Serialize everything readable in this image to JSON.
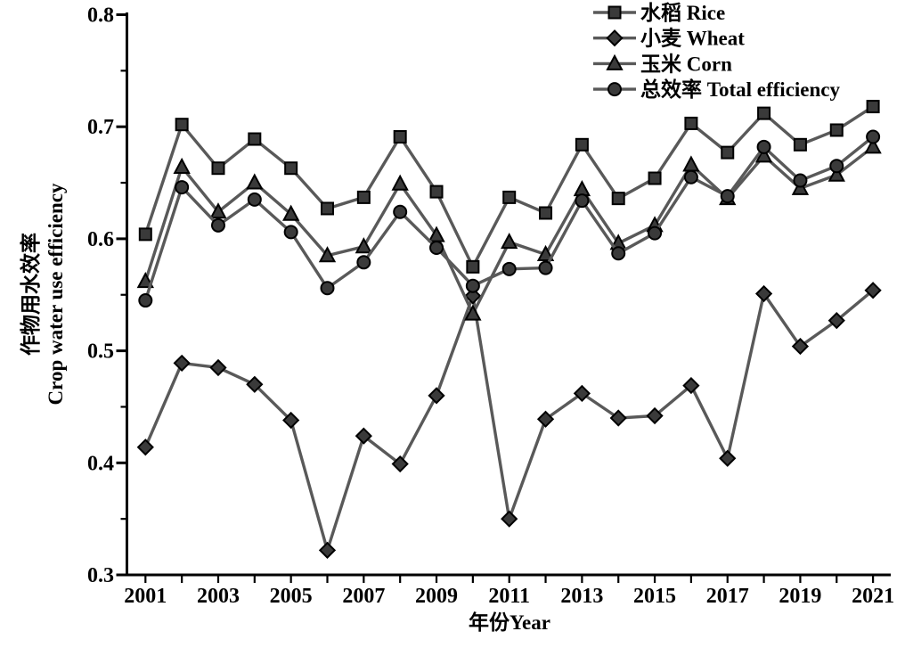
{
  "figure": {
    "background": "#ffffff",
    "description_note": "Static line chart figure, no interactive controls visible"
  },
  "chart_data": {
    "type": "line",
    "title": "",
    "xlabel": "年份Year",
    "ylabel_zh": "作物用水效率",
    "ylabel_en": "Crop water use efficiency",
    "x": [
      2001,
      2002,
      2003,
      2004,
      2005,
      2006,
      2007,
      2008,
      2009,
      2010,
      2011,
      2012,
      2013,
      2014,
      2015,
      2016,
      2017,
      2018,
      2019,
      2020,
      2021
    ],
    "x_tick_labels_shown": [
      "2001",
      "2003",
      "2005",
      "2007",
      "2009",
      "2011",
      "2013",
      "2015",
      "2017",
      "2019",
      "2021"
    ],
    "y_ticks": [
      0.3,
      0.4,
      0.5,
      0.6,
      0.7,
      0.8
    ],
    "y_minor_ticks": [
      0.35,
      0.45,
      0.55,
      0.65,
      0.75
    ],
    "ylim": [
      0.3,
      0.8
    ],
    "grid": false,
    "legend_position": "top-right-inside",
    "line_color": "#595959",
    "marker_fill": "#3a3a3a",
    "marker_stroke": "#000000",
    "axis_color": "#000000",
    "series": [
      {
        "id": "rice",
        "name": "水稻 Rice",
        "marker": "square",
        "values": [
          0.604,
          0.702,
          0.663,
          0.689,
          0.663,
          0.627,
          0.637,
          0.691,
          0.642,
          0.575,
          0.637,
          0.623,
          0.684,
          0.636,
          0.654,
          0.703,
          0.677,
          0.712,
          0.684,
          0.697,
          0.718
        ]
      },
      {
        "id": "wheat",
        "name": "小麦 Wheat",
        "marker": "diamond",
        "values": [
          0.414,
          0.489,
          0.485,
          0.47,
          0.438,
          0.322,
          0.424,
          0.399,
          0.46,
          0.549,
          0.35,
          0.439,
          0.462,
          0.44,
          0.442,
          0.469,
          0.404,
          0.551,
          0.504,
          0.527,
          0.554
        ]
      },
      {
        "id": "corn",
        "name": "玉米 Corn",
        "marker": "triangle",
        "values": [
          0.562,
          0.664,
          0.624,
          0.65,
          0.622,
          0.585,
          0.593,
          0.649,
          0.603,
          0.533,
          0.597,
          0.586,
          0.644,
          0.596,
          0.612,
          0.666,
          0.636,
          0.674,
          0.645,
          0.657,
          0.682
        ]
      },
      {
        "id": "total",
        "name": "总效率 Total efficiency",
        "marker": "circle",
        "values": [
          0.545,
          0.646,
          0.612,
          0.635,
          0.606,
          0.556,
          0.579,
          0.624,
          0.592,
          0.558,
          0.573,
          0.574,
          0.634,
          0.587,
          0.605,
          0.655,
          0.638,
          0.682,
          0.652,
          0.665,
          0.691
        ]
      }
    ]
  }
}
